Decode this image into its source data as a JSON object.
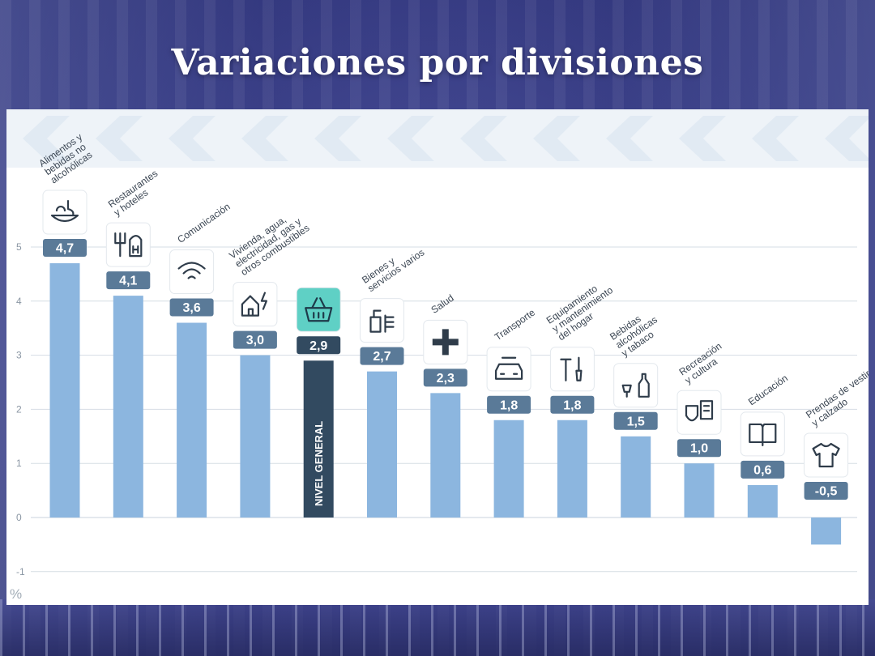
{
  "page": {
    "title": "Variaciones por divisiones"
  },
  "chart_data": {
    "type": "bar",
    "title": "Variaciones por divisiones",
    "ylabel": "%",
    "ylim": [
      -1,
      5.2
    ],
    "yticks": [
      "-1",
      "0",
      "1",
      "2",
      "3",
      "4",
      "5"
    ],
    "grid": true,
    "colors": {
      "bar": "#8cb6df",
      "highlight": "#324a60",
      "label_bg": "#5a7a98",
      "highlight_icon_bg": "#5fd0c5"
    },
    "categories": [
      {
        "name": [
          "Alimentos y",
          "bebidas no",
          "alcohólicas"
        ],
        "value": 4.7,
        "label": "4,7",
        "icon": "food-basket-icon"
      },
      {
        "name": [
          "Restaurantes",
          "y hoteles"
        ],
        "value": 4.1,
        "label": "4,1",
        "icon": "fork-knife-hotel-icon"
      },
      {
        "name": [
          "Comunicación"
        ],
        "value": 3.6,
        "label": "3,6",
        "icon": "wifi-icon"
      },
      {
        "name": [
          "Vivienda, agua,",
          "electricidad, gas y",
          "otros combustibles"
        ],
        "value": 3.0,
        "label": "3,0",
        "icon": "house-utilities-icon"
      },
      {
        "name": [],
        "value": 2.9,
        "label": "2,9",
        "icon": "shopping-basket-icon",
        "highlight": true,
        "bar_text": "NIVEL GENERAL"
      },
      {
        "name": [
          "Bienes y",
          "servicios varios"
        ],
        "value": 2.7,
        "label": "2,7",
        "icon": "toiletries-icon"
      },
      {
        "name": [
          "Salud"
        ],
        "value": 2.3,
        "label": "2,3",
        "icon": "health-cross-icon"
      },
      {
        "name": [
          "Transporte"
        ],
        "value": 1.8,
        "label": "1,8",
        "icon": "car-wrench-icon"
      },
      {
        "name": [
          "Equipamiento",
          "y mantenimiento",
          "del hogar"
        ],
        "value": 1.8,
        "label": "1,8",
        "icon": "tools-icon"
      },
      {
        "name": [
          "Bebidas",
          "alcohólicas",
          "y tabaco"
        ],
        "value": 1.5,
        "label": "1,5",
        "icon": "bottle-glass-icon"
      },
      {
        "name": [
          "Recreación",
          "y cultura"
        ],
        "value": 1.0,
        "label": "1,0",
        "icon": "theater-masks-icon"
      },
      {
        "name": [
          "Educación"
        ],
        "value": 0.6,
        "label": "0,6",
        "icon": "book-icon"
      },
      {
        "name": [
          "Prendas de vestir",
          "y calzado"
        ],
        "value": -0.5,
        "label": "-0,5",
        "icon": "tshirt-icon"
      }
    ]
  }
}
